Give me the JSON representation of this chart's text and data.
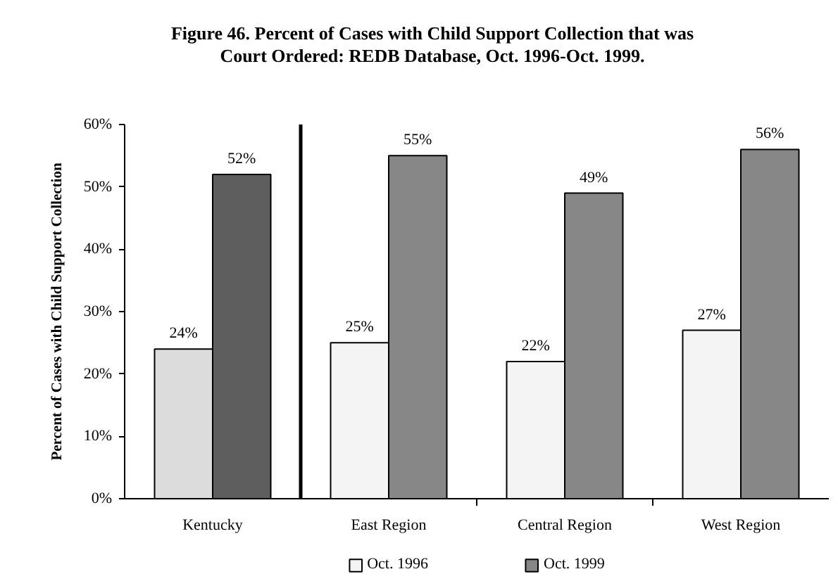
{
  "chart_data": {
    "type": "bar",
    "title": "Figure 46. Percent of Cases with Child Support Collection that was Court Ordered: REDB Database, Oct. 1996-Oct. 1999.",
    "ylabel": "Percent of Cases with Child Support Collection",
    "categories": [
      "Kentucky",
      "East Region",
      "Central Region",
      "West Region"
    ],
    "series": [
      {
        "name": "Oct. 1996",
        "colors": [
          "#dcdcdc",
          "#f4f4f4",
          "#f4f4f4",
          "#f4f4f4"
        ],
        "values": [
          24,
          25,
          22,
          27
        ],
        "value_labels": [
          "24%",
          "25%",
          "22%",
          "27%"
        ]
      },
      {
        "name": "Oct. 1999",
        "colors": [
          "#5e5e5e",
          "#878787",
          "#878787",
          "#878787"
        ],
        "values": [
          52,
          55,
          49,
          56
        ],
        "value_labels": [
          "52%",
          "55%",
          "49%",
          "56%"
        ]
      }
    ],
    "ylim": [
      0,
      60
    ],
    "yticks": [
      {
        "value": 0,
        "label": "0%"
      },
      {
        "value": 10,
        "label": "10%"
      },
      {
        "value": 20,
        "label": "20%"
      },
      {
        "value": 30,
        "label": "30%"
      },
      {
        "value": 40,
        "label": "40%"
      },
      {
        "value": 50,
        "label": "50%"
      },
      {
        "value": 60,
        "label": "60%"
      }
    ],
    "legend": "bottom"
  }
}
